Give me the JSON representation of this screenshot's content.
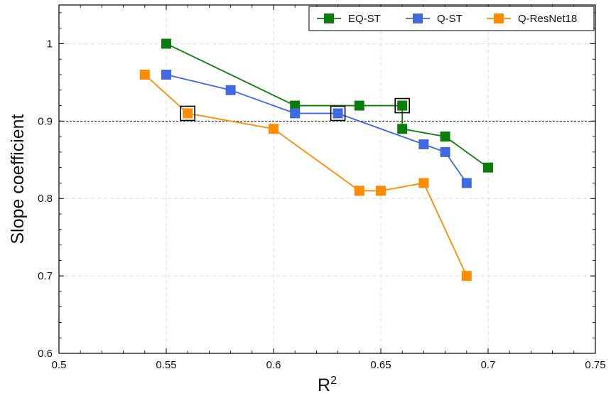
{
  "chart_data": {
    "type": "line",
    "xlabel": "R",
    "xlabel_superscript": "2",
    "ylabel": "Slope coefficient",
    "xlim": [
      0.5,
      0.75
    ],
    "ylim": [
      0.6,
      1.05
    ],
    "x_ticks": [
      0.5,
      0.55,
      0.6,
      0.65,
      0.7,
      0.75
    ],
    "x_tick_labels": [
      "0.5",
      "0.55",
      "0.6",
      "0.65",
      "0.7",
      "0.75"
    ],
    "y_ticks": [
      0.6,
      0.7,
      0.8,
      0.9,
      1.0
    ],
    "y_tick_labels": [
      "0.6",
      "0.7",
      "0.8",
      "0.9",
      "1"
    ],
    "grid": true,
    "legend_position": "top-right",
    "reference_line": {
      "y": 0.9,
      "style": "dashed",
      "color": "#222222"
    },
    "series": [
      {
        "name": "EQ-ST",
        "color": "#0a7d0a",
        "marker": "square",
        "x": [
          0.55,
          0.61,
          0.64,
          0.66,
          0.66,
          0.68,
          0.7
        ],
        "y": [
          1.0,
          0.92,
          0.92,
          0.92,
          0.89,
          0.88,
          0.84
        ],
        "highlight": {
          "x": 0.66,
          "y": 0.92
        }
      },
      {
        "name": "Q-ST",
        "color": "#4169e1",
        "marker": "square",
        "x": [
          0.55,
          0.58,
          0.61,
          0.63,
          0.67,
          0.68,
          0.69
        ],
        "y": [
          0.96,
          0.94,
          0.91,
          0.91,
          0.87,
          0.86,
          0.82
        ],
        "highlight": {
          "x": 0.63,
          "y": 0.91
        }
      },
      {
        "name": "Q-ResNet18",
        "color": "#ff8c00",
        "marker": "square",
        "x": [
          0.54,
          0.56,
          0.6,
          0.64,
          0.65,
          0.67,
          0.69
        ],
        "y": [
          0.96,
          0.91,
          0.89,
          0.81,
          0.81,
          0.82,
          0.7
        ],
        "highlight": {
          "x": 0.56,
          "y": 0.91
        }
      }
    ]
  }
}
